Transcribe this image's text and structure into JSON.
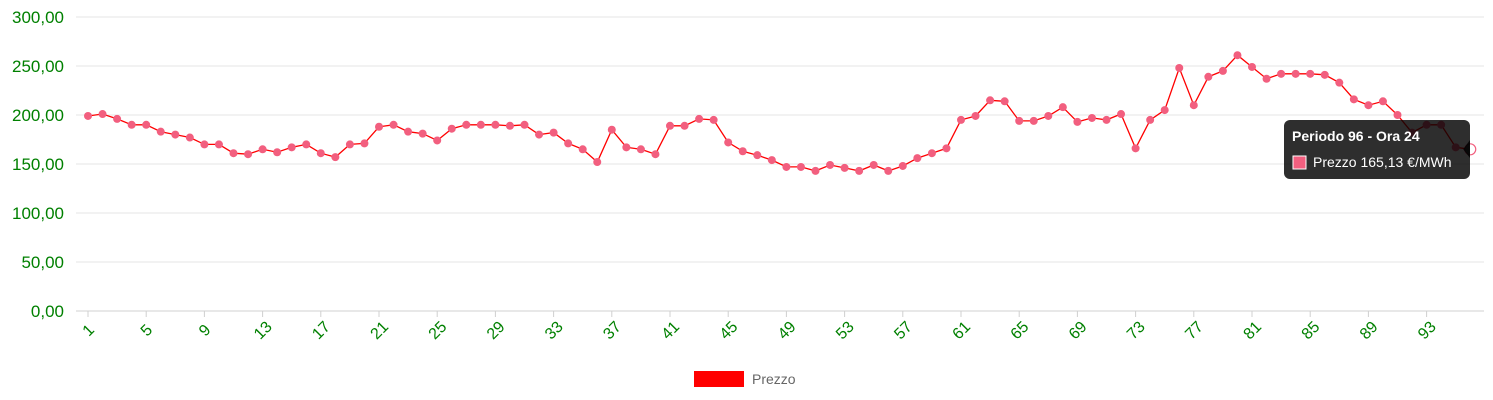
{
  "chart_data": {
    "type": "line",
    "x": [
      1,
      2,
      3,
      4,
      5,
      6,
      7,
      8,
      9,
      10,
      11,
      12,
      13,
      14,
      15,
      16,
      17,
      18,
      19,
      20,
      21,
      22,
      23,
      24,
      25,
      26,
      27,
      28,
      29,
      30,
      31,
      32,
      33,
      34,
      35,
      36,
      37,
      38,
      39,
      40,
      41,
      42,
      43,
      44,
      45,
      46,
      47,
      48,
      49,
      50,
      51,
      52,
      53,
      54,
      55,
      56,
      57,
      58,
      59,
      60,
      61,
      62,
      63,
      64,
      65,
      66,
      67,
      68,
      69,
      70,
      71,
      72,
      73,
      74,
      75,
      76,
      77,
      78,
      79,
      80,
      81,
      82,
      83,
      84,
      85,
      86,
      87,
      88,
      89,
      90,
      91,
      92,
      93,
      94,
      95,
      96
    ],
    "x_tick_labels": [
      "1",
      "5",
      "9",
      "13",
      "17",
      "21",
      "25",
      "29",
      "33",
      "37",
      "41",
      "45",
      "49",
      "53",
      "57",
      "61",
      "65",
      "69",
      "73",
      "77",
      "81",
      "85",
      "89",
      "93"
    ],
    "y_tick_labels": [
      "0,00",
      "50,00",
      "100,00",
      "150,00",
      "200,00",
      "250,00",
      "300,00"
    ],
    "ylim": [
      0,
      300
    ],
    "series": [
      {
        "name": "Prezzo",
        "color": "#ff0000",
        "point_color": "#f25f7f",
        "values": [
          199,
          201,
          196,
          190,
          190,
          183,
          180,
          177,
          170,
          170,
          161,
          160,
          165,
          162,
          167,
          170,
          161,
          157,
          170,
          171,
          188,
          190,
          183,
          181,
          174,
          186,
          190,
          190,
          190,
          189,
          190,
          180,
          182,
          171,
          165,
          152,
          185,
          167,
          165,
          160,
          189,
          189,
          196,
          195,
          172,
          163,
          159,
          154,
          147,
          147,
          143,
          149,
          146,
          143,
          149,
          143,
          148,
          156,
          161,
          166,
          195,
          199,
          215,
          214,
          194,
          194,
          199,
          208,
          193,
          197,
          195,
          201,
          166,
          195,
          205,
          248,
          210,
          239,
          245,
          261,
          249,
          237,
          242,
          242,
          242,
          241,
          233,
          216,
          210,
          214,
          200,
          182,
          190,
          190,
          167,
          165
        ]
      }
    ],
    "grid": true,
    "legend": {
      "position": "bottom",
      "label": "Prezzo",
      "swatch_color": "#ff0000"
    },
    "tooltip": {
      "title": "Periodo 96 - Ora 24",
      "label": "Prezzo 165,13 €/MWh",
      "point_index": 95
    }
  }
}
